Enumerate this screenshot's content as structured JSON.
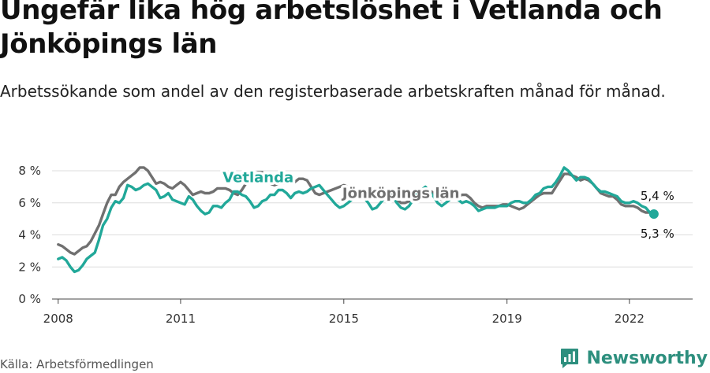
{
  "title": "Ungefär lika hög arbetslöshet i Vetlanda och Jönköpings län",
  "subtitle": "Arbetssökande som andel av den registerbaserade arbetskraften månad för månad.",
  "source": "Källa: Arbetsförmedlingen",
  "brand": {
    "name": "Newsworthy",
    "icon": "newsworthy-logo-icon",
    "color": "#2d8f7e"
  },
  "chart_data": {
    "type": "line",
    "title": "Ungefär lika hög arbetslöshet i Vetlanda och Jönköpings län",
    "xlabel": "",
    "ylabel": "",
    "ylim": [
      0,
      8
    ],
    "xlim": [
      2007.85,
      2023.55
    ],
    "yticks": [
      {
        "value": 0,
        "label": "0 %"
      },
      {
        "value": 2,
        "label": "2 %"
      },
      {
        "value": 4,
        "label": "4 %"
      },
      {
        "value": 6,
        "label": "6 %"
      },
      {
        "value": 8,
        "label": "8 %"
      }
    ],
    "xticks": [
      {
        "value": 2008,
        "label": "2008"
      },
      {
        "value": 2011,
        "label": "2011"
      },
      {
        "value": 2015,
        "label": "2015"
      },
      {
        "value": 2019,
        "label": "2019"
      },
      {
        "value": 2022,
        "label": "2022"
      }
    ],
    "grid": true,
    "series": [
      {
        "name": "Jönköpings län",
        "color": "#707070",
        "end_label": "5,4 %",
        "points": [
          [
            2008.0,
            3.4
          ],
          [
            2008.1,
            3.3
          ],
          [
            2008.2,
            3.1
          ],
          [
            2008.3,
            2.9
          ],
          [
            2008.4,
            2.8
          ],
          [
            2008.5,
            3.0
          ],
          [
            2008.6,
            3.2
          ],
          [
            2008.7,
            3.3
          ],
          [
            2008.8,
            3.6
          ],
          [
            2008.9,
            4.1
          ],
          [
            2009.0,
            4.6
          ],
          [
            2009.1,
            5.3
          ],
          [
            2009.2,
            6.0
          ],
          [
            2009.3,
            6.5
          ],
          [
            2009.4,
            6.5
          ],
          [
            2009.5,
            7.0
          ],
          [
            2009.6,
            7.3
          ],
          [
            2009.7,
            7.5
          ],
          [
            2009.8,
            7.7
          ],
          [
            2009.9,
            7.9
          ],
          [
            2010.0,
            8.2
          ],
          [
            2010.1,
            8.2
          ],
          [
            2010.2,
            8.0
          ],
          [
            2010.3,
            7.6
          ],
          [
            2010.4,
            7.2
          ],
          [
            2010.5,
            7.3
          ],
          [
            2010.6,
            7.2
          ],
          [
            2010.7,
            7.0
          ],
          [
            2010.8,
            6.9
          ],
          [
            2010.9,
            7.1
          ],
          [
            2011.0,
            7.3
          ],
          [
            2011.1,
            7.1
          ],
          [
            2011.2,
            6.8
          ],
          [
            2011.3,
            6.5
          ],
          [
            2011.4,
            6.6
          ],
          [
            2011.5,
            6.7
          ],
          [
            2011.6,
            6.6
          ],
          [
            2011.7,
            6.6
          ],
          [
            2011.8,
            6.7
          ],
          [
            2011.9,
            6.9
          ],
          [
            2012.0,
            6.9
          ],
          [
            2012.1,
            6.9
          ],
          [
            2012.2,
            6.8
          ],
          [
            2012.3,
            6.6
          ],
          [
            2012.4,
            6.5
          ],
          [
            2012.5,
            6.8
          ],
          [
            2012.6,
            7.2
          ],
          [
            2012.7,
            7.6
          ],
          [
            2012.8,
            7.8
          ],
          [
            2012.9,
            7.9
          ],
          [
            2013.0,
            7.9
          ],
          [
            2013.1,
            7.6
          ],
          [
            2013.2,
            7.2
          ],
          [
            2013.3,
            7.1
          ],
          [
            2013.4,
            7.2
          ],
          [
            2013.5,
            7.2
          ],
          [
            2013.6,
            7.3
          ],
          [
            2013.7,
            7.3
          ],
          [
            2013.8,
            7.3
          ],
          [
            2013.9,
            7.5
          ],
          [
            2014.0,
            7.5
          ],
          [
            2014.1,
            7.4
          ],
          [
            2014.2,
            7.0
          ],
          [
            2014.3,
            6.6
          ],
          [
            2014.4,
            6.5
          ],
          [
            2014.5,
            6.6
          ],
          [
            2014.6,
            6.7
          ],
          [
            2014.7,
            6.8
          ],
          [
            2014.8,
            6.9
          ],
          [
            2014.9,
            7.0
          ],
          [
            2015.0,
            7.1
          ],
          [
            2015.1,
            7.0
          ],
          [
            2015.2,
            6.8
          ],
          [
            2015.3,
            6.6
          ],
          [
            2015.4,
            6.5
          ],
          [
            2015.5,
            6.6
          ],
          [
            2015.6,
            6.6
          ],
          [
            2015.7,
            6.6
          ],
          [
            2015.8,
            6.7
          ],
          [
            2015.9,
            6.9
          ],
          [
            2016.0,
            6.9
          ],
          [
            2016.1,
            6.8
          ],
          [
            2016.2,
            6.6
          ],
          [
            2016.3,
            6.2
          ],
          [
            2016.4,
            6.0
          ],
          [
            2016.5,
            6.0
          ],
          [
            2016.6,
            6.1
          ],
          [
            2016.7,
            6.3
          ],
          [
            2016.8,
            6.5
          ],
          [
            2016.9,
            6.7
          ],
          [
            2017.0,
            6.8
          ],
          [
            2017.1,
            6.8
          ],
          [
            2017.2,
            6.6
          ],
          [
            2017.3,
            6.3
          ],
          [
            2017.4,
            6.2
          ],
          [
            2017.5,
            6.3
          ],
          [
            2017.6,
            6.3
          ],
          [
            2017.7,
            6.4
          ],
          [
            2017.8,
            6.4
          ],
          [
            2017.9,
            6.5
          ],
          [
            2018.0,
            6.5
          ],
          [
            2018.1,
            6.3
          ],
          [
            2018.2,
            6.0
          ],
          [
            2018.3,
            5.8
          ],
          [
            2018.4,
            5.7
          ],
          [
            2018.5,
            5.8
          ],
          [
            2018.6,
            5.8
          ],
          [
            2018.7,
            5.8
          ],
          [
            2018.8,
            5.8
          ],
          [
            2018.9,
            5.9
          ],
          [
            2019.0,
            5.9
          ],
          [
            2019.1,
            5.8
          ],
          [
            2019.2,
            5.7
          ],
          [
            2019.3,
            5.6
          ],
          [
            2019.4,
            5.7
          ],
          [
            2019.5,
            5.9
          ],
          [
            2019.6,
            6.1
          ],
          [
            2019.7,
            6.3
          ],
          [
            2019.8,
            6.5
          ],
          [
            2019.9,
            6.6
          ],
          [
            2020.0,
            6.6
          ],
          [
            2020.1,
            6.6
          ],
          [
            2020.2,
            7.0
          ],
          [
            2020.3,
            7.4
          ],
          [
            2020.4,
            7.8
          ],
          [
            2020.5,
            7.8
          ],
          [
            2020.6,
            7.7
          ],
          [
            2020.7,
            7.6
          ],
          [
            2020.8,
            7.4
          ],
          [
            2020.9,
            7.5
          ],
          [
            2021.0,
            7.4
          ],
          [
            2021.1,
            7.2
          ],
          [
            2021.2,
            6.9
          ],
          [
            2021.3,
            6.6
          ],
          [
            2021.4,
            6.5
          ],
          [
            2021.5,
            6.4
          ],
          [
            2021.6,
            6.4
          ],
          [
            2021.7,
            6.2
          ],
          [
            2021.8,
            5.9
          ],
          [
            2021.9,
            5.8
          ],
          [
            2022.0,
            5.8
          ],
          [
            2022.1,
            5.8
          ],
          [
            2022.2,
            5.7
          ],
          [
            2022.3,
            5.5
          ],
          [
            2022.4,
            5.4
          ],
          [
            2022.5,
            5.4
          ],
          [
            2022.6,
            5.4
          ]
        ]
      },
      {
        "name": "Vetlanda",
        "color": "#21a899",
        "end_label": "5,3 %",
        "points": [
          [
            2008.0,
            2.5
          ],
          [
            2008.1,
            2.6
          ],
          [
            2008.2,
            2.4
          ],
          [
            2008.3,
            2.0
          ],
          [
            2008.4,
            1.7
          ],
          [
            2008.5,
            1.8
          ],
          [
            2008.6,
            2.1
          ],
          [
            2008.7,
            2.5
          ],
          [
            2008.8,
            2.7
          ],
          [
            2008.9,
            2.9
          ],
          [
            2009.0,
            3.7
          ],
          [
            2009.1,
            4.6
          ],
          [
            2009.2,
            5.0
          ],
          [
            2009.3,
            5.7
          ],
          [
            2009.4,
            6.1
          ],
          [
            2009.5,
            6.0
          ],
          [
            2009.6,
            6.3
          ],
          [
            2009.7,
            7.1
          ],
          [
            2009.8,
            7.0
          ],
          [
            2009.9,
            6.8
          ],
          [
            2010.0,
            6.9
          ],
          [
            2010.1,
            7.1
          ],
          [
            2010.2,
            7.2
          ],
          [
            2010.3,
            7.0
          ],
          [
            2010.4,
            6.8
          ],
          [
            2010.5,
            6.3
          ],
          [
            2010.6,
            6.4
          ],
          [
            2010.7,
            6.6
          ],
          [
            2010.8,
            6.2
          ],
          [
            2010.9,
            6.1
          ],
          [
            2011.0,
            6.0
          ],
          [
            2011.1,
            5.9
          ],
          [
            2011.2,
            6.4
          ],
          [
            2011.3,
            6.2
          ],
          [
            2011.4,
            5.8
          ],
          [
            2011.5,
            5.5
          ],
          [
            2011.6,
            5.3
          ],
          [
            2011.7,
            5.4
          ],
          [
            2011.8,
            5.8
          ],
          [
            2011.9,
            5.8
          ],
          [
            2012.0,
            5.7
          ],
          [
            2012.1,
            6.0
          ],
          [
            2012.2,
            6.2
          ],
          [
            2012.3,
            6.7
          ],
          [
            2012.4,
            6.7
          ],
          [
            2012.5,
            6.5
          ],
          [
            2012.6,
            6.4
          ],
          [
            2012.7,
            6.1
          ],
          [
            2012.8,
            5.7
          ],
          [
            2012.9,
            5.8
          ],
          [
            2013.0,
            6.1
          ],
          [
            2013.1,
            6.2
          ],
          [
            2013.2,
            6.5
          ],
          [
            2013.3,
            6.5
          ],
          [
            2013.4,
            6.8
          ],
          [
            2013.5,
            6.8
          ],
          [
            2013.6,
            6.6
          ],
          [
            2013.7,
            6.3
          ],
          [
            2013.8,
            6.6
          ],
          [
            2013.9,
            6.7
          ],
          [
            2014.0,
            6.6
          ],
          [
            2014.1,
            6.7
          ],
          [
            2014.2,
            6.9
          ],
          [
            2014.3,
            7.0
          ],
          [
            2014.4,
            7.1
          ],
          [
            2014.5,
            6.8
          ],
          [
            2014.6,
            6.5
          ],
          [
            2014.7,
            6.2
          ],
          [
            2014.8,
            5.9
          ],
          [
            2014.9,
            5.7
          ],
          [
            2015.0,
            5.8
          ],
          [
            2015.1,
            6.0
          ],
          [
            2015.2,
            6.2
          ],
          [
            2015.3,
            6.5
          ],
          [
            2015.4,
            6.6
          ],
          [
            2015.5,
            6.3
          ],
          [
            2015.6,
            6.0
          ],
          [
            2015.7,
            5.6
          ],
          [
            2015.8,
            5.7
          ],
          [
            2015.9,
            6.0
          ],
          [
            2016.0,
            6.3
          ],
          [
            2016.1,
            6.5
          ],
          [
            2016.2,
            6.4
          ],
          [
            2016.3,
            6.0
          ],
          [
            2016.4,
            5.7
          ],
          [
            2016.5,
            5.6
          ],
          [
            2016.6,
            5.8
          ],
          [
            2016.7,
            6.2
          ],
          [
            2016.8,
            6.6
          ],
          [
            2016.9,
            6.8
          ],
          [
            2017.0,
            7.0
          ],
          [
            2017.1,
            6.7
          ],
          [
            2017.2,
            6.4
          ],
          [
            2017.3,
            6.0
          ],
          [
            2017.4,
            5.8
          ],
          [
            2017.5,
            6.0
          ],
          [
            2017.6,
            6.2
          ],
          [
            2017.7,
            6.4
          ],
          [
            2017.8,
            6.2
          ],
          [
            2017.9,
            6.0
          ],
          [
            2018.0,
            6.1
          ],
          [
            2018.1,
            6.0
          ],
          [
            2018.2,
            5.8
          ],
          [
            2018.3,
            5.5
          ],
          [
            2018.4,
            5.6
          ],
          [
            2018.5,
            5.7
          ],
          [
            2018.6,
            5.7
          ],
          [
            2018.7,
            5.7
          ],
          [
            2018.8,
            5.8
          ],
          [
            2018.9,
            5.8
          ],
          [
            2019.0,
            5.8
          ],
          [
            2019.1,
            6.0
          ],
          [
            2019.2,
            6.1
          ],
          [
            2019.3,
            6.1
          ],
          [
            2019.4,
            6.0
          ],
          [
            2019.5,
            6.0
          ],
          [
            2019.6,
            6.2
          ],
          [
            2019.7,
            6.5
          ],
          [
            2019.8,
            6.6
          ],
          [
            2019.9,
            6.9
          ],
          [
            2020.0,
            7.0
          ],
          [
            2020.1,
            7.0
          ],
          [
            2020.2,
            7.3
          ],
          [
            2020.3,
            7.7
          ],
          [
            2020.4,
            8.2
          ],
          [
            2020.5,
            8.0
          ],
          [
            2020.6,
            7.7
          ],
          [
            2020.7,
            7.4
          ],
          [
            2020.8,
            7.6
          ],
          [
            2020.9,
            7.6
          ],
          [
            2021.0,
            7.5
          ],
          [
            2021.1,
            7.2
          ],
          [
            2021.2,
            6.9
          ],
          [
            2021.3,
            6.7
          ],
          [
            2021.4,
            6.7
          ],
          [
            2021.5,
            6.6
          ],
          [
            2021.6,
            6.5
          ],
          [
            2021.7,
            6.4
          ],
          [
            2021.8,
            6.1
          ],
          [
            2021.9,
            6.0
          ],
          [
            2022.0,
            6.0
          ],
          [
            2022.1,
            6.1
          ],
          [
            2022.2,
            6.0
          ],
          [
            2022.3,
            5.8
          ],
          [
            2022.4,
            5.7
          ],
          [
            2022.5,
            5.4
          ],
          [
            2022.6,
            5.3
          ]
        ]
      }
    ],
    "annotations": [
      {
        "text": "Vetlanda",
        "series": "Vetlanda",
        "x": 2012.9,
        "y": 7.3
      },
      {
        "text": "Jönköpings län",
        "series": "Jönköpings län",
        "x": 2016.4,
        "y": 6.3
      }
    ]
  }
}
